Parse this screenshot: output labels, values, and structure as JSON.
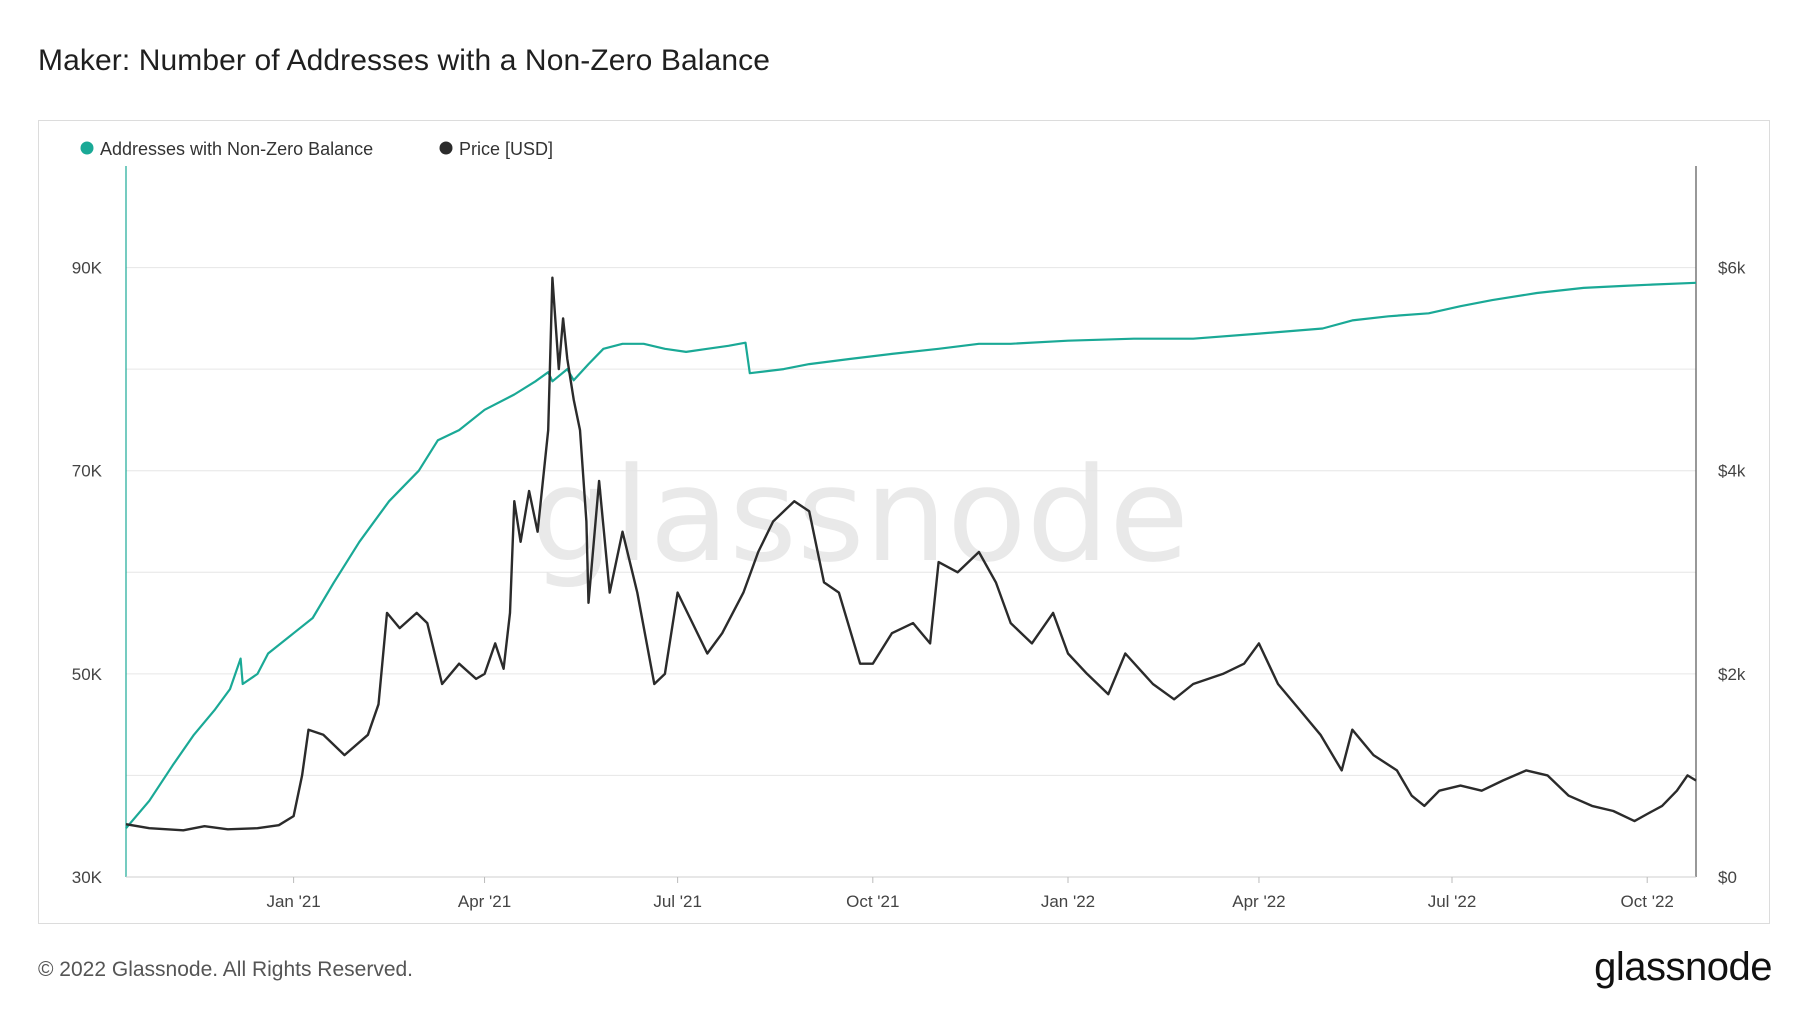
{
  "title": "Maker: Number of Addresses with a Non-Zero Balance",
  "footer": "© 2022 Glassnode. All Rights Reserved.",
  "brand": "glassnode",
  "watermark": "glassnode",
  "colors": {
    "addresses": "#1aa996",
    "price": "#2b2b2b",
    "grid": "#e6e6e6"
  },
  "chart_data": {
    "type": "line",
    "title": "Maker: Number of Addresses with a Non-Zero Balance",
    "legend_placement": "top-left",
    "grid": true,
    "x_ticks": [
      "Jan '21",
      "Apr '21",
      "Jul '21",
      "Oct '21",
      "Jan '22",
      "Apr '22",
      "Jul '22",
      "Oct '22"
    ],
    "x_tick_dates": [
      "2021-01-01",
      "2021-04-01",
      "2021-07-01",
      "2021-10-01",
      "2022-01-01",
      "2022-04-01",
      "2022-07-01",
      "2022-10-01"
    ],
    "xlim": [
      "2020-10-14",
      "2022-10-24"
    ],
    "y_left": {
      "ticks": [
        "30K",
        "50K",
        "70K",
        "90K"
      ],
      "tick_values": [
        30000,
        50000,
        70000,
        90000
      ],
      "ylim": [
        30000,
        100000
      ]
    },
    "y_right": {
      "ticks": [
        "$0",
        "$2k",
        "$4k",
        "$6k"
      ],
      "tick_values": [
        0,
        2000,
        4000,
        6000
      ],
      "ylim": [
        0,
        7000
      ]
    },
    "series": [
      {
        "name": "Addresses with Non-Zero Balance",
        "axis": "left",
        "points": [
          [
            "2020-10-14",
            34800
          ],
          [
            "2020-10-25",
            37500
          ],
          [
            "2020-11-05",
            41000
          ],
          [
            "2020-11-15",
            44000
          ],
          [
            "2020-11-25",
            46500
          ],
          [
            "2020-12-02",
            48500
          ],
          [
            "2020-12-07",
            51500
          ],
          [
            "2020-12-08",
            49000
          ],
          [
            "2020-12-15",
            50000
          ],
          [
            "2020-12-20",
            52000
          ],
          [
            "2021-01-01",
            54000
          ],
          [
            "2021-01-10",
            55500
          ],
          [
            "2021-01-20",
            59000
          ],
          [
            "2021-02-01",
            63000
          ],
          [
            "2021-02-15",
            67000
          ],
          [
            "2021-03-01",
            70000
          ],
          [
            "2021-03-10",
            73000
          ],
          [
            "2021-03-20",
            74000
          ],
          [
            "2021-04-01",
            76000
          ],
          [
            "2021-04-15",
            77500
          ],
          [
            "2021-04-25",
            78800
          ],
          [
            "2021-05-01",
            79700
          ],
          [
            "2021-05-03",
            78800
          ],
          [
            "2021-05-10",
            80000
          ],
          [
            "2021-05-13",
            78900
          ],
          [
            "2021-05-20",
            80500
          ],
          [
            "2021-05-27",
            82000
          ],
          [
            "2021-06-05",
            82500
          ],
          [
            "2021-06-15",
            82500
          ],
          [
            "2021-06-25",
            82000
          ],
          [
            "2021-07-05",
            81700
          ],
          [
            "2021-07-15",
            82000
          ],
          [
            "2021-07-25",
            82300
          ],
          [
            "2021-08-02",
            82600
          ],
          [
            "2021-08-04",
            79600
          ],
          [
            "2021-08-20",
            80000
          ],
          [
            "2021-09-01",
            80500
          ],
          [
            "2021-09-20",
            81000
          ],
          [
            "2021-10-10",
            81500
          ],
          [
            "2021-11-01",
            82000
          ],
          [
            "2021-11-20",
            82500
          ],
          [
            "2021-12-05",
            82500
          ],
          [
            "2022-01-01",
            82800
          ],
          [
            "2022-02-01",
            83000
          ],
          [
            "2022-03-01",
            83000
          ],
          [
            "2022-04-01",
            83500
          ],
          [
            "2022-05-01",
            84000
          ],
          [
            "2022-05-15",
            84800
          ],
          [
            "2022-06-01",
            85200
          ],
          [
            "2022-06-20",
            85500
          ],
          [
            "2022-07-05",
            86200
          ],
          [
            "2022-07-20",
            86800
          ],
          [
            "2022-08-10",
            87500
          ],
          [
            "2022-09-01",
            88000
          ],
          [
            "2022-09-20",
            88200
          ],
          [
            "2022-10-01",
            88300
          ],
          [
            "2022-10-24",
            88500
          ]
        ]
      },
      {
        "name": "Price [USD]",
        "axis": "right",
        "points": [
          [
            "2020-10-14",
            520
          ],
          [
            "2020-10-25",
            480
          ],
          [
            "2020-11-10",
            460
          ],
          [
            "2020-11-20",
            500
          ],
          [
            "2020-12-01",
            470
          ],
          [
            "2020-12-15",
            480
          ],
          [
            "2020-12-25",
            510
          ],
          [
            "2021-01-01",
            600
          ],
          [
            "2021-01-05",
            1000
          ],
          [
            "2021-01-08",
            1450
          ],
          [
            "2021-01-15",
            1400
          ],
          [
            "2021-01-25",
            1200
          ],
          [
            "2021-02-05",
            1400
          ],
          [
            "2021-02-10",
            1700
          ],
          [
            "2021-02-14",
            2600
          ],
          [
            "2021-02-20",
            2450
          ],
          [
            "2021-02-28",
            2600
          ],
          [
            "2021-03-05",
            2500
          ],
          [
            "2021-03-12",
            1900
          ],
          [
            "2021-03-20",
            2100
          ],
          [
            "2021-03-28",
            1950
          ],
          [
            "2021-04-01",
            2000
          ],
          [
            "2021-04-06",
            2300
          ],
          [
            "2021-04-10",
            2050
          ],
          [
            "2021-04-13",
            2600
          ],
          [
            "2021-04-15",
            3700
          ],
          [
            "2021-04-18",
            3300
          ],
          [
            "2021-04-22",
            3800
          ],
          [
            "2021-04-26",
            3400
          ],
          [
            "2021-05-01",
            4400
          ],
          [
            "2021-05-03",
            5900
          ],
          [
            "2021-05-06",
            5000
          ],
          [
            "2021-05-08",
            5500
          ],
          [
            "2021-05-10",
            5100
          ],
          [
            "2021-05-13",
            4700
          ],
          [
            "2021-05-16",
            4400
          ],
          [
            "2021-05-19",
            3500
          ],
          [
            "2021-05-20",
            2700
          ],
          [
            "2021-05-25",
            3900
          ],
          [
            "2021-05-30",
            2800
          ],
          [
            "2021-06-05",
            3400
          ],
          [
            "2021-06-12",
            2800
          ],
          [
            "2021-06-20",
            1900
          ],
          [
            "2021-06-25",
            2000
          ],
          [
            "2021-07-01",
            2800
          ],
          [
            "2021-07-08",
            2500
          ],
          [
            "2021-07-15",
            2200
          ],
          [
            "2021-07-22",
            2400
          ],
          [
            "2021-08-01",
            2800
          ],
          [
            "2021-08-08",
            3200
          ],
          [
            "2021-08-15",
            3500
          ],
          [
            "2021-08-25",
            3700
          ],
          [
            "2021-09-01",
            3600
          ],
          [
            "2021-09-08",
            2900
          ],
          [
            "2021-09-15",
            2800
          ],
          [
            "2021-09-25",
            2100
          ],
          [
            "2021-10-01",
            2100
          ],
          [
            "2021-10-10",
            2400
          ],
          [
            "2021-10-20",
            2500
          ],
          [
            "2021-10-28",
            2300
          ],
          [
            "2021-11-01",
            3100
          ],
          [
            "2021-11-10",
            3000
          ],
          [
            "2021-11-20",
            3200
          ],
          [
            "2021-11-28",
            2900
          ],
          [
            "2021-12-05",
            2500
          ],
          [
            "2021-12-15",
            2300
          ],
          [
            "2021-12-25",
            2600
          ],
          [
            "2022-01-01",
            2200
          ],
          [
            "2022-01-10",
            2000
          ],
          [
            "2022-01-20",
            1800
          ],
          [
            "2022-01-28",
            2200
          ],
          [
            "2022-02-10",
            1900
          ],
          [
            "2022-02-20",
            1750
          ],
          [
            "2022-03-01",
            1900
          ],
          [
            "2022-03-15",
            2000
          ],
          [
            "2022-03-25",
            2100
          ],
          [
            "2022-04-01",
            2300
          ],
          [
            "2022-04-10",
            1900
          ],
          [
            "2022-04-20",
            1650
          ],
          [
            "2022-04-30",
            1400
          ],
          [
            "2022-05-10",
            1050
          ],
          [
            "2022-05-15",
            1450
          ],
          [
            "2022-05-25",
            1200
          ],
          [
            "2022-06-05",
            1050
          ],
          [
            "2022-06-12",
            800
          ],
          [
            "2022-06-18",
            700
          ],
          [
            "2022-06-25",
            850
          ],
          [
            "2022-07-05",
            900
          ],
          [
            "2022-07-15",
            850
          ],
          [
            "2022-07-25",
            950
          ],
          [
            "2022-08-05",
            1050
          ],
          [
            "2022-08-15",
            1000
          ],
          [
            "2022-08-25",
            800
          ],
          [
            "2022-09-05",
            700
          ],
          [
            "2022-09-15",
            650
          ],
          [
            "2022-09-25",
            550
          ],
          [
            "2022-10-01",
            620
          ],
          [
            "2022-10-08",
            700
          ],
          [
            "2022-10-15",
            850
          ],
          [
            "2022-10-20",
            1000
          ],
          [
            "2022-10-24",
            950
          ]
        ]
      }
    ]
  }
}
